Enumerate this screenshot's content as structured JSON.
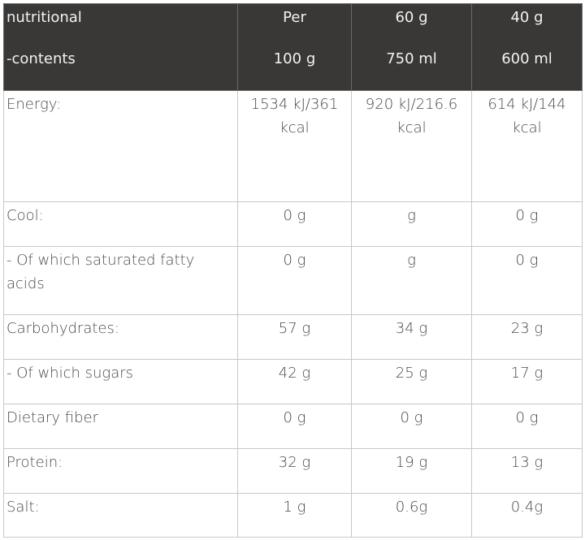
{
  "header": {
    "col1": [
      "nutritional",
      "-contents"
    ],
    "col2": [
      "Per",
      "100 g"
    ],
    "col3": [
      "60 g",
      "750 ml"
    ],
    "col4": [
      "40 g",
      "600 ml"
    ]
  },
  "rows": [
    {
      "label": "Energy:",
      "v1": "1534 kJ/361 kcal",
      "v2": "920 kJ/216.6 kcal",
      "v3": "614 kJ/144 kcal"
    },
    {
      "label": "Cool:",
      "v1": "0 g",
      "v2": "g",
      "v3": "0 g"
    },
    {
      "label": " - Of which saturated fatty acids",
      "v1": "0 g",
      "v2": "g",
      "v3": "0 g"
    },
    {
      "label": "Carbohydrates:",
      "v1": "57 g",
      "v2": "34 g",
      "v3": "23 g"
    },
    {
      "label": "- Of which sugars",
      "v1": "42 g",
      "v2": "25 g",
      "v3": "17 g"
    },
    {
      "label": "Dietary fiber",
      "v1": "0 g",
      "v2": "0 g",
      "v3": "0 g"
    },
    {
      "label": "Protein:",
      "v1": "32 g",
      "v2": "19 g",
      "v3": "13 g"
    },
    {
      "label": "Salt:",
      "v1": "1 g",
      "v2": "0.6g",
      "v3": "0.4g"
    }
  ]
}
